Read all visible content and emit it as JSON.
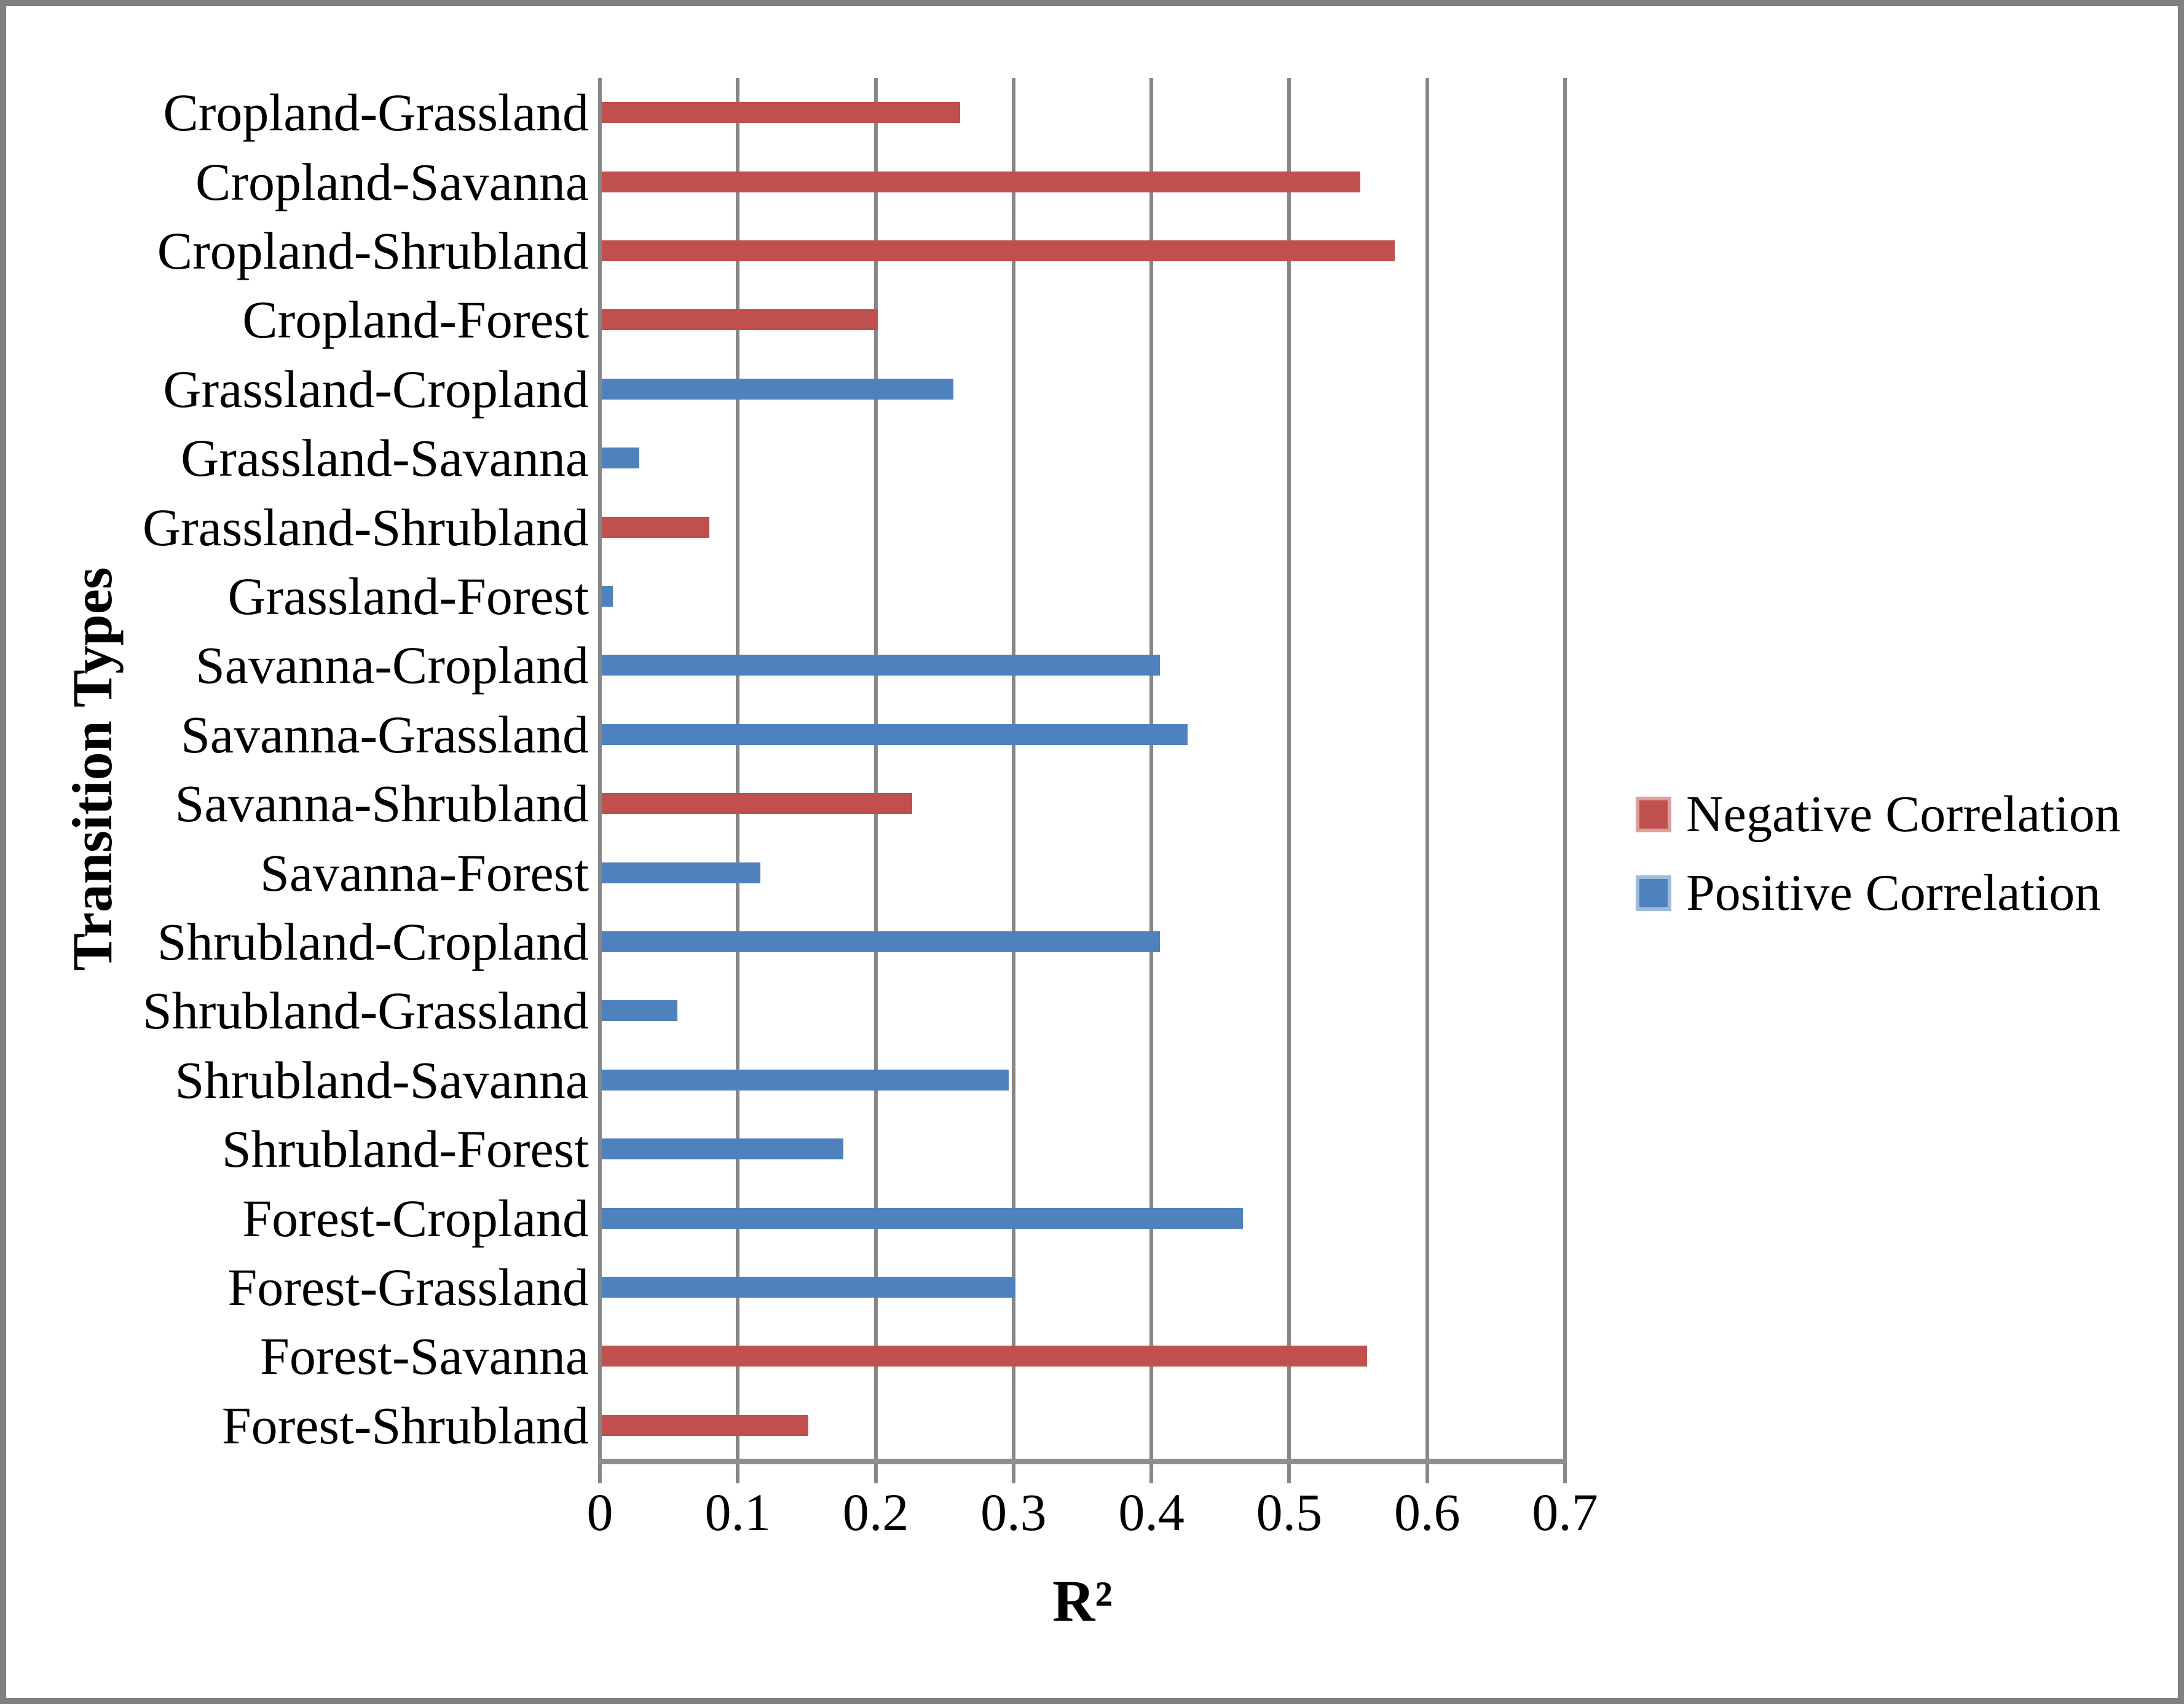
{
  "chart_data": {
    "type": "bar",
    "orientation": "horizontal",
    "xlabel": "R²",
    "ylabel": "Transition Types",
    "xlim": [
      0,
      0.7
    ],
    "x_ticks": [
      "0",
      "0.1",
      "0.2",
      "0.3",
      "0.4",
      "0.5",
      "0.6",
      "0.7"
    ],
    "grid": "vertical-only",
    "legend_position": "right",
    "colors": {
      "negative": "#C0504D",
      "positive": "#4F81BD",
      "negative_key_border": "#DCA09E",
      "positive_key_border": "#9FBCDD",
      "gridline": "#878787",
      "axis_line": "#8e8e8e",
      "frame": "#7f7f7f"
    },
    "bars": [
      {
        "label": "Cropland-Grassland",
        "value": 0.26,
        "correlation": "negative"
      },
      {
        "label": "Cropland-Savanna",
        "value": 0.55,
        "correlation": "negative"
      },
      {
        "label": "Cropland-Shrubland",
        "value": 0.575,
        "correlation": "negative"
      },
      {
        "label": "Cropland-Forest",
        "value": 0.2,
        "correlation": "negative"
      },
      {
        "label": "Grassland-Cropland",
        "value": 0.255,
        "correlation": "positive"
      },
      {
        "label": "Grassland-Savanna",
        "value": 0.027,
        "correlation": "positive"
      },
      {
        "label": "Grassland-Shrubland",
        "value": 0.078,
        "correlation": "negative"
      },
      {
        "label": "Grassland-Forest",
        "value": 0.008,
        "correlation": "positive"
      },
      {
        "label": "Savanna-Cropland",
        "value": 0.405,
        "correlation": "positive"
      },
      {
        "label": "Savanna-Grassland",
        "value": 0.425,
        "correlation": "positive"
      },
      {
        "label": "Savanna-Shrubland",
        "value": 0.225,
        "correlation": "negative"
      },
      {
        "label": "Savanna-Forest",
        "value": 0.115,
        "correlation": "positive"
      },
      {
        "label": "Shrubland-Cropland",
        "value": 0.405,
        "correlation": "positive"
      },
      {
        "label": "Shrubland-Grassland",
        "value": 0.055,
        "correlation": "positive"
      },
      {
        "label": "Shrubland-Savanna",
        "value": 0.295,
        "correlation": "positive"
      },
      {
        "label": "Shrubland-Forest",
        "value": 0.175,
        "correlation": "positive"
      },
      {
        "label": "Forest-Cropland",
        "value": 0.465,
        "correlation": "positive"
      },
      {
        "label": "Forest-Grassland",
        "value": 0.3,
        "correlation": "positive"
      },
      {
        "label": "Forest-Savanna",
        "value": 0.555,
        "correlation": "negative"
      },
      {
        "label": "Forest-Shrubland",
        "value": 0.15,
        "correlation": "negative"
      }
    ],
    "legend": [
      {
        "label": "Negative Correlation",
        "correlation": "negative"
      },
      {
        "label": "Positive Correlation",
        "correlation": "positive"
      }
    ]
  }
}
